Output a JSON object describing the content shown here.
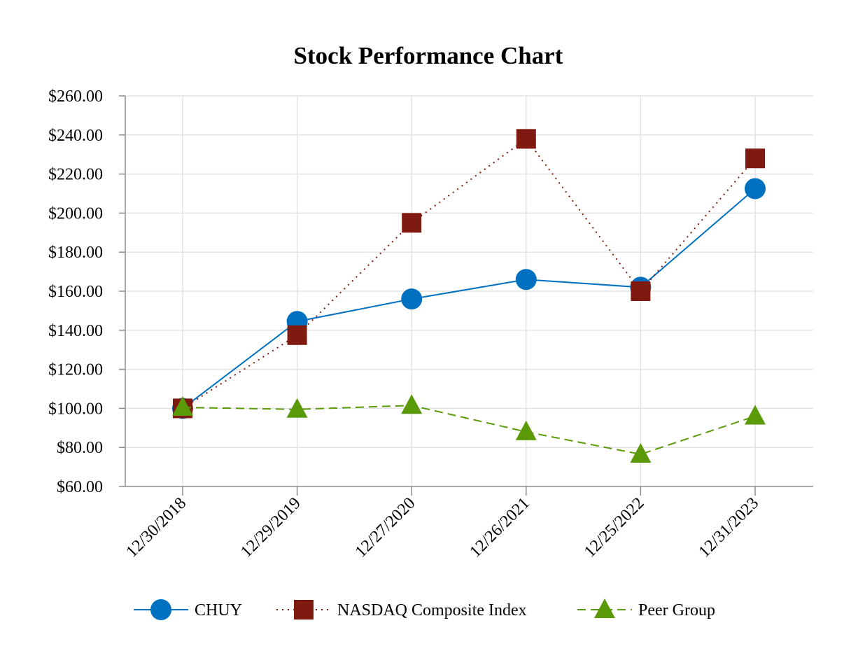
{
  "chart_data": {
    "type": "line",
    "title": "Stock Performance Chart",
    "xlabel": "",
    "ylabel": "",
    "categories": [
      "12/30/2018",
      "12/29/2019",
      "12/27/2020",
      "12/26/2021",
      "12/25/2022",
      "12/31/2023"
    ],
    "ylim": [
      60,
      260
    ],
    "yticks": [
      60,
      80,
      100,
      120,
      140,
      160,
      180,
      200,
      220,
      240,
      260
    ],
    "ytick_labels": [
      "$60.00",
      "$80.00",
      "$100.00",
      "$120.00",
      "$140.00",
      "$160.00",
      "$180.00",
      "$200.00",
      "$220.00",
      "$240.00",
      "$260.00"
    ],
    "grid": true,
    "legend_position": "bottom",
    "series": [
      {
        "name": "CHUY",
        "values": [
          100.0,
          144.5,
          156.0,
          166.0,
          162.0,
          212.5
        ],
        "color": "#0070c0",
        "line_style": "solid",
        "marker": "circle"
      },
      {
        "name": "NASDAQ Composite Index",
        "values": [
          100.0,
          137.5,
          195.0,
          238.0,
          160.0,
          228.0
        ],
        "color": "#7f1a10",
        "line_style": "dotted",
        "marker": "square"
      },
      {
        "name": "Peer Group",
        "values": [
          100.5,
          99.5,
          101.5,
          88.0,
          76.5,
          96.0
        ],
        "color": "#5a9a08",
        "line_style": "dashed",
        "marker": "triangle"
      }
    ]
  }
}
